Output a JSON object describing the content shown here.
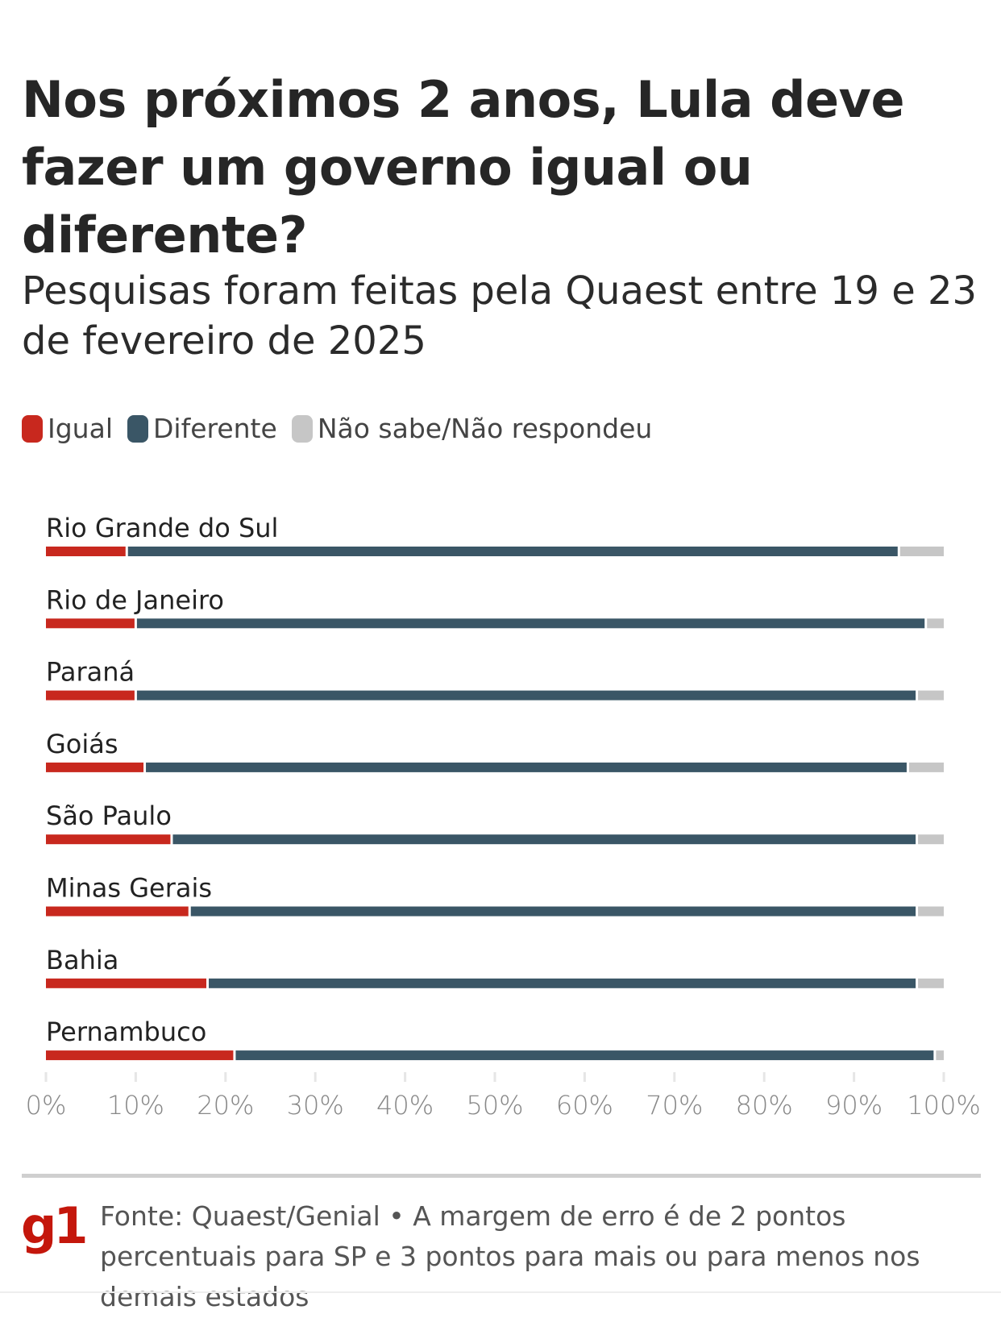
{
  "title": "Nos próximos 2 anos, Lula deve fazer um governo igual ou diferente?",
  "subtitle": "Pesquisas foram feitas pela Quaest entre 19 e 23 de fevereiro de 2025",
  "colors": {
    "igual": "#c8281e",
    "diferente": "#3a5666",
    "nao_sabe": "#c6c6c6"
  },
  "chart_data": {
    "type": "bar",
    "orientation": "horizontal",
    "stacked": true,
    "categories": [
      "Rio Grande do Sul",
      "Rio de Janeiro",
      "Paraná",
      "Goiás",
      "São Paulo",
      "Minas Gerais",
      "Bahia",
      "Pernambuco"
    ],
    "series": [
      {
        "name": "Igual",
        "values": [
          9,
          10,
          10,
          11,
          14,
          16,
          18,
          21
        ]
      },
      {
        "name": "Diferente",
        "values": [
          86,
          88,
          87,
          85,
          83,
          81,
          79,
          78
        ]
      },
      {
        "name": "Não sabe/Não respondeu",
        "values": [
          5,
          2,
          3,
          4,
          3,
          3,
          3,
          1
        ]
      }
    ],
    "xlim": [
      0,
      100
    ],
    "xticks": [
      "0%",
      "10%",
      "20%",
      "30%",
      "40%",
      "50%",
      "60%",
      "70%",
      "80%",
      "90%",
      "100%"
    ],
    "legend": "top-left",
    "grid": false
  },
  "footer": {
    "logo": "g1",
    "source": "Fonte: Quaest/Genial • A margem de erro é de 2 pontos percentuais para SP e 3 pontos para mais ou para menos nos demais estados"
  }
}
